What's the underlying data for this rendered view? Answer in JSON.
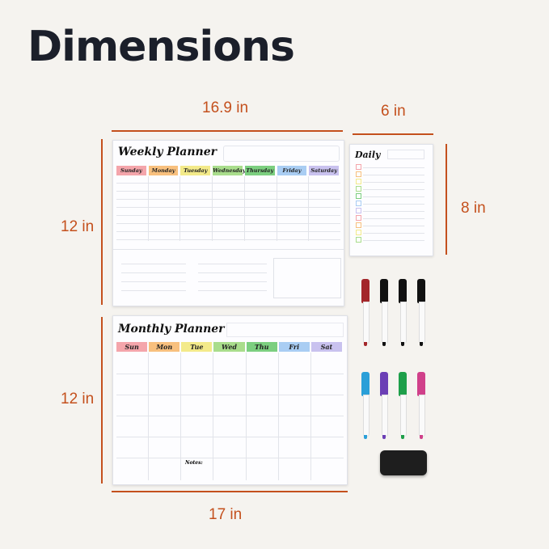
{
  "title": "Dimensions",
  "dimensions": {
    "weekly_width": "16.9 in",
    "daily_width": "6 in",
    "daily_height": "8 in",
    "weekly_height": "12 in",
    "monthly_height": "12 in",
    "monthly_width": "17 in"
  },
  "weekly": {
    "title": "Weekly Planner",
    "days": [
      "Sunday",
      "Monday",
      "Tuesday",
      "Wednesday",
      "Thursday",
      "Friday",
      "Saturday"
    ]
  },
  "daily": {
    "title": "Daily"
  },
  "monthly": {
    "title": "Monthly Planner",
    "days": [
      "Sun",
      "Mon",
      "Tue",
      "Wed",
      "Thu",
      "Fri",
      "Sat"
    ],
    "notes_label": "Notes:"
  },
  "colors": {
    "accent": "#c4501d",
    "day_colors": [
      "#f4a5ab",
      "#f8c07e",
      "#f3ea8a",
      "#a9dd8c",
      "#7ccf80",
      "#a9cdf3",
      "#c9c2ef"
    ],
    "markers_row1": [
      "#a3262a",
      "#111111",
      "#111111",
      "#111111"
    ],
    "markers_row2": [
      "#2a9fd8",
      "#6b3fb5",
      "#1e9f4a",
      "#d0408a"
    ]
  }
}
